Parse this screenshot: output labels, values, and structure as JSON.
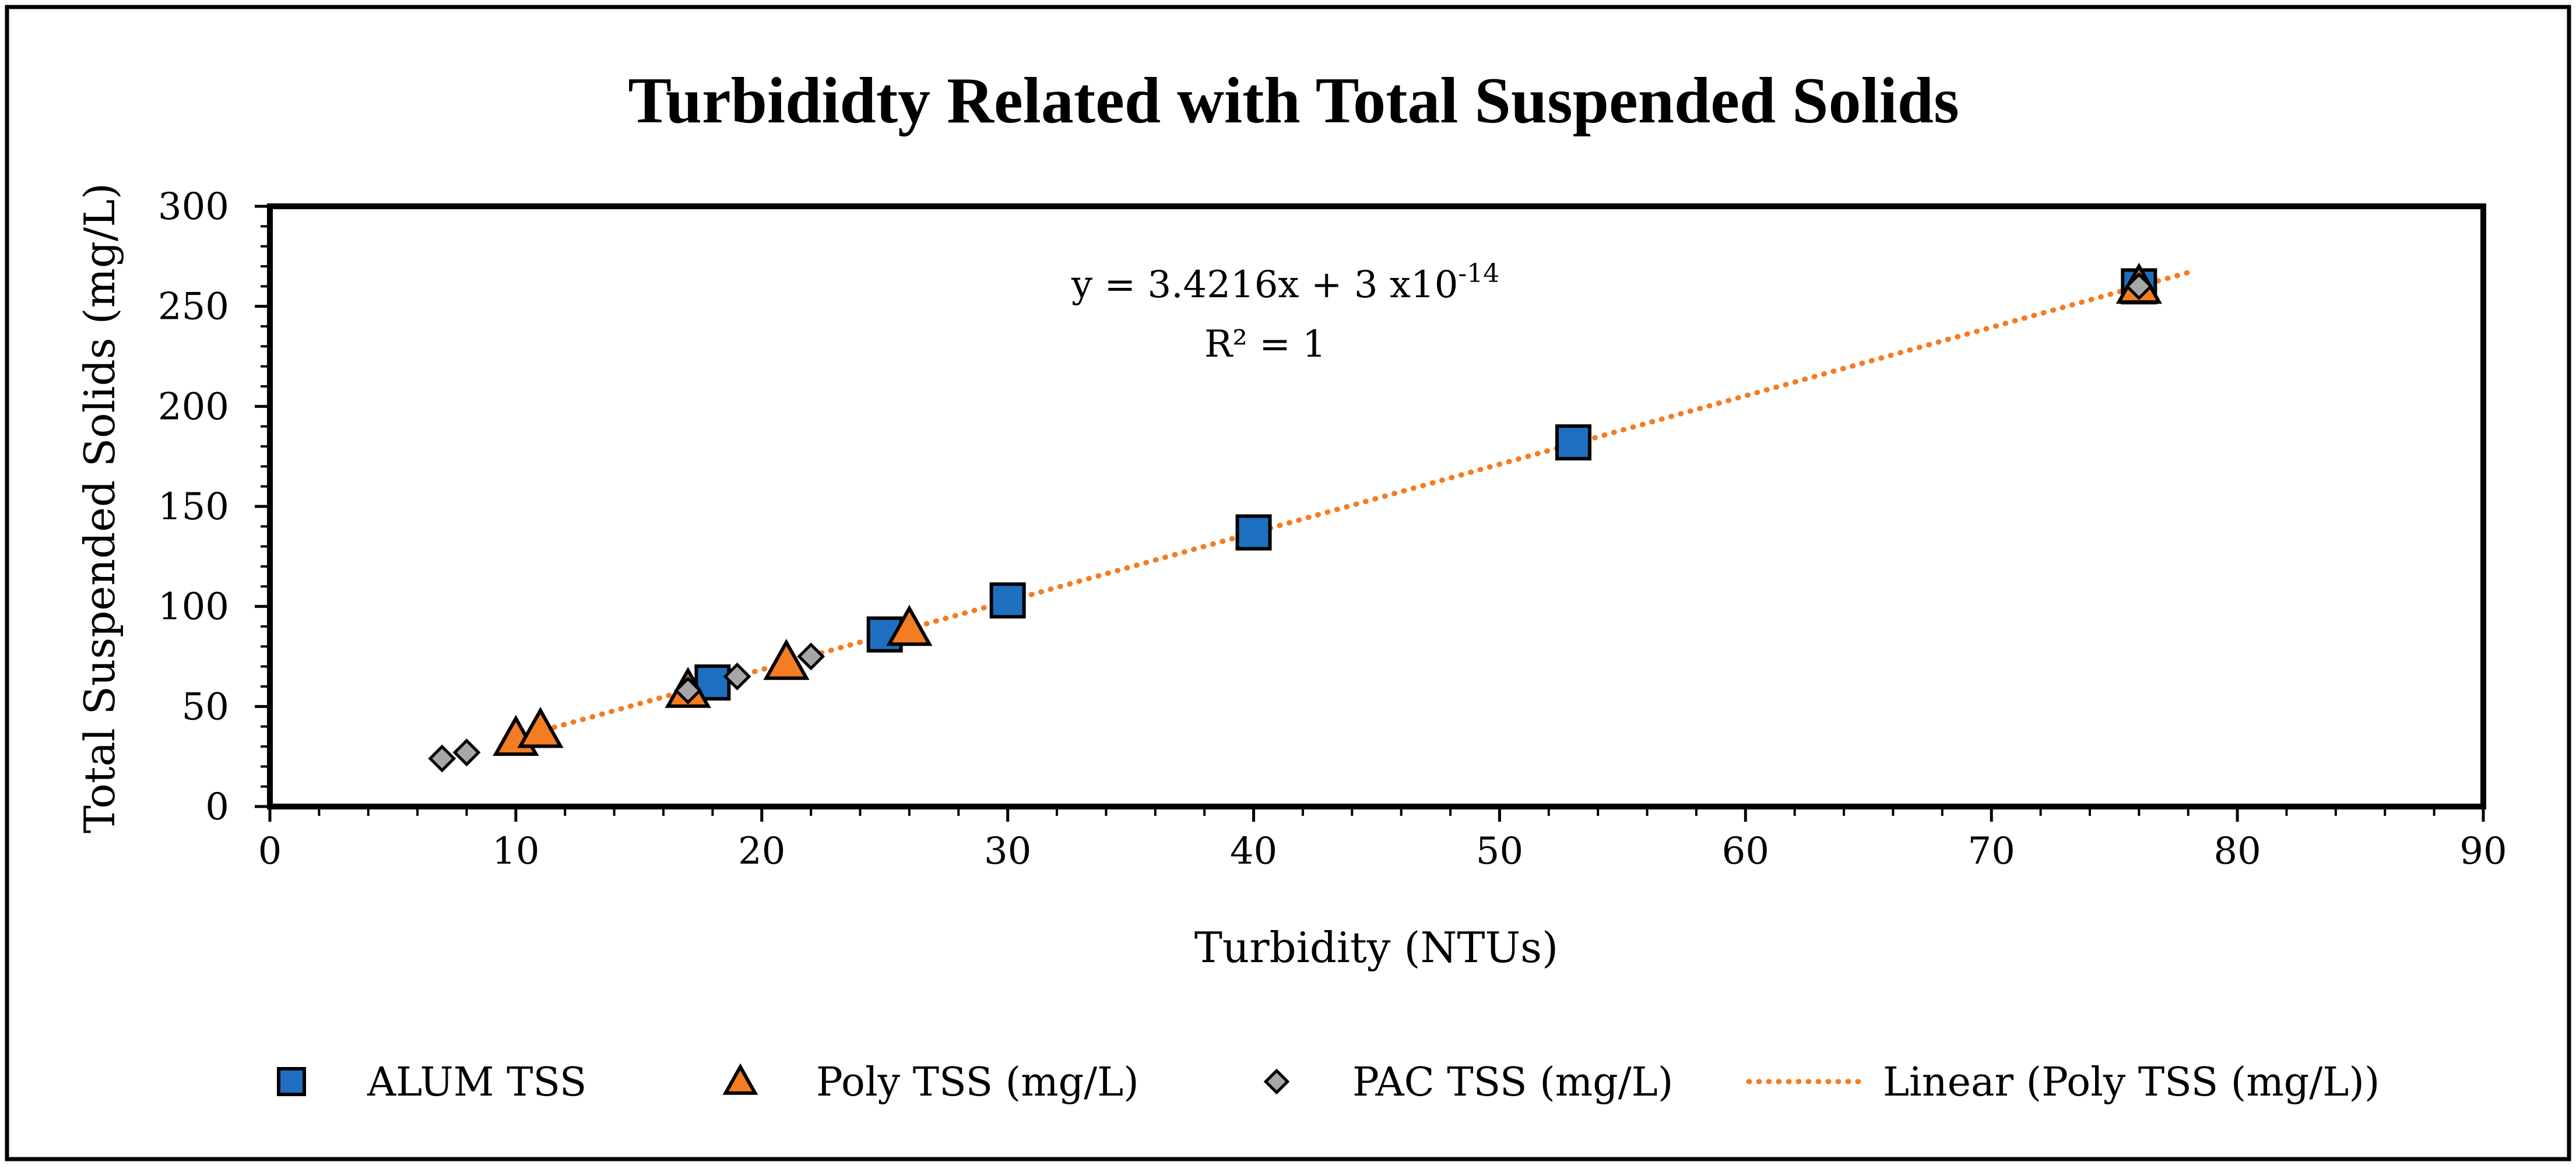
{
  "chart_data": {
    "type": "scatter",
    "title": "Turbididty Related with Total Suspended Solids",
    "xlabel": "Turbidity (NTUs)",
    "ylabel": "Total Suspended Solids (mg/L)",
    "xlim": [
      0,
      90
    ],
    "ylim": [
      0,
      300
    ],
    "x_ticks": [
      0,
      10,
      20,
      30,
      40,
      50,
      60,
      70,
      80,
      90
    ],
    "y_ticks": [
      0,
      50,
      100,
      150,
      200,
      250,
      300
    ],
    "grid": false,
    "legend_position": "bottom",
    "series": [
      {
        "name": "ALUM TSS",
        "marker": "square",
        "color": "#1f6fc0",
        "points": [
          {
            "x": 18,
            "y": 62
          },
          {
            "x": 25,
            "y": 86
          },
          {
            "x": 30,
            "y": 103
          },
          {
            "x": 40,
            "y": 137
          },
          {
            "x": 53,
            "y": 182
          },
          {
            "x": 76,
            "y": 260
          }
        ]
      },
      {
        "name": "Poly TSS (mg/L)",
        "marker": "triangle",
        "color": "#f47c22",
        "points": [
          {
            "x": 10,
            "y": 34
          },
          {
            "x": 11,
            "y": 38
          },
          {
            "x": 17,
            "y": 58
          },
          {
            "x": 21,
            "y": 72
          },
          {
            "x": 26,
            "y": 89
          },
          {
            "x": 76,
            "y": 260
          }
        ]
      },
      {
        "name": "PAC TSS (mg/L)",
        "marker": "diamond",
        "color": "#a6a6a6",
        "points": [
          {
            "x": 7,
            "y": 24
          },
          {
            "x": 8,
            "y": 27
          },
          {
            "x": 17,
            "y": 58
          },
          {
            "x": 19,
            "y": 65
          },
          {
            "x": 22,
            "y": 75
          },
          {
            "x": 76,
            "y": 260
          }
        ]
      }
    ],
    "trendline": {
      "name": "Linear (Poly TSS (mg/L))",
      "type": "linear",
      "color": "#f47c22",
      "slope": 3.4216,
      "intercept": 0,
      "x_range": [
        10,
        78
      ]
    },
    "annotations": {
      "equation_prefix": "y = 3.4216x + 3 x10",
      "equation_exponent": "-14",
      "r_squared": "R² = 1"
    }
  }
}
